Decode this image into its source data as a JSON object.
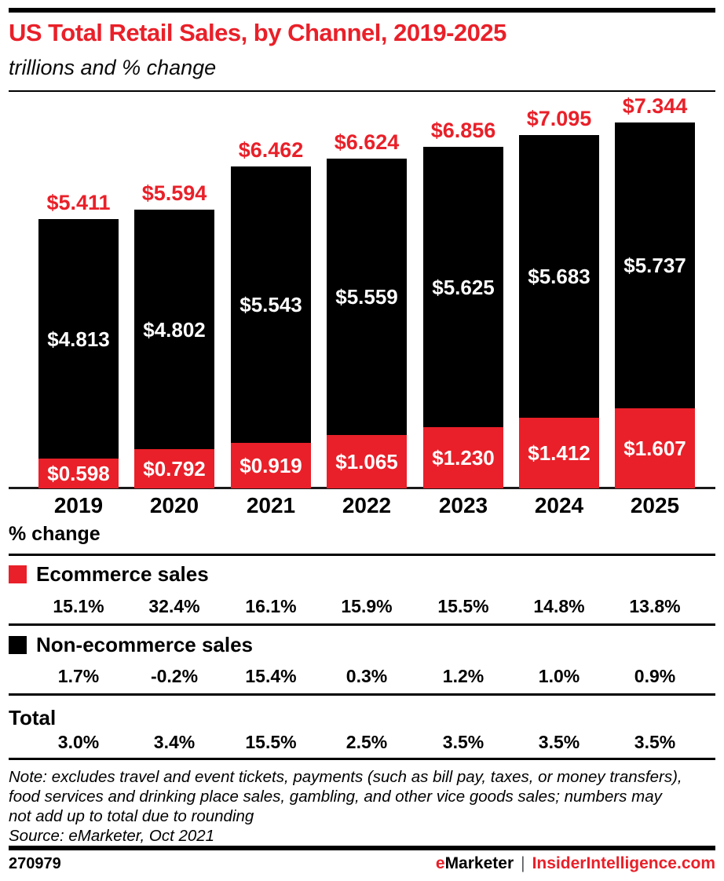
{
  "header": {
    "title": "US Total Retail Sales, by Channel, 2019-2025",
    "subtitle": "trillions and % change"
  },
  "chart_data": {
    "type": "bar",
    "stacked": true,
    "units": "USD trillions",
    "title": "US Total Retail Sales, by Channel, 2019-2025",
    "subtitle": "trillions and % change",
    "categories": [
      "2019",
      "2020",
      "2021",
      "2022",
      "2023",
      "2024",
      "2025"
    ],
    "series": [
      {
        "name": "Ecommerce sales",
        "color": "#e92029",
        "values": [
          0.598,
          0.792,
          0.919,
          1.065,
          1.23,
          1.412,
          1.607
        ],
        "labels": [
          "$0.598",
          "$0.792",
          "$0.919",
          "$1.065",
          "$1.230",
          "$1.412",
          "$1.607"
        ],
        "pct_change": [
          "15.1%",
          "32.4%",
          "16.1%",
          "15.9%",
          "15.5%",
          "14.8%",
          "13.8%"
        ]
      },
      {
        "name": "Non-ecommerce sales",
        "color": "#000000",
        "values": [
          4.813,
          4.802,
          5.543,
          5.559,
          5.625,
          5.683,
          5.737
        ],
        "labels": [
          "$4.813",
          "$4.802",
          "$5.543",
          "$5.559",
          "$5.625",
          "$5.683",
          "$5.737"
        ],
        "pct_change": [
          "1.7%",
          "-0.2%",
          "15.4%",
          "0.3%",
          "1.2%",
          "1.0%",
          "0.9%"
        ]
      }
    ],
    "totals": {
      "name": "Total",
      "values": [
        5.411,
        5.594,
        6.462,
        6.624,
        6.856,
        7.095,
        7.344
      ],
      "labels": [
        "$5.411",
        "$5.594",
        "$6.462",
        "$6.624",
        "$6.856",
        "$7.095",
        "$7.344"
      ],
      "pct_change": [
        "3.0%",
        "3.4%",
        "15.5%",
        "2.5%",
        "3.5%",
        "3.5%",
        "3.5%"
      ]
    },
    "ylim": [
      0,
      7.6
    ],
    "grid": false,
    "legend_position": "below-in-table"
  },
  "pct_table": {
    "heading": "% change",
    "total_label": "Total"
  },
  "note": {
    "lines": [
      "Note: excludes travel and event tickets, payments (such as bill pay, taxes, or money transfers),",
      "food services and drinking place sales, gambling, and other vice goods sales; numbers may",
      "not add up to total due to rounding",
      "Source: eMarketer, Oct 2021"
    ]
  },
  "footer": {
    "chart_id": "270979",
    "brand_e": "e",
    "brand_rest": "Marketer",
    "separator": "|",
    "site": "InsiderIntelligence.com"
  },
  "colors": {
    "accent_red": "#e92029",
    "bar_black": "#000000"
  }
}
